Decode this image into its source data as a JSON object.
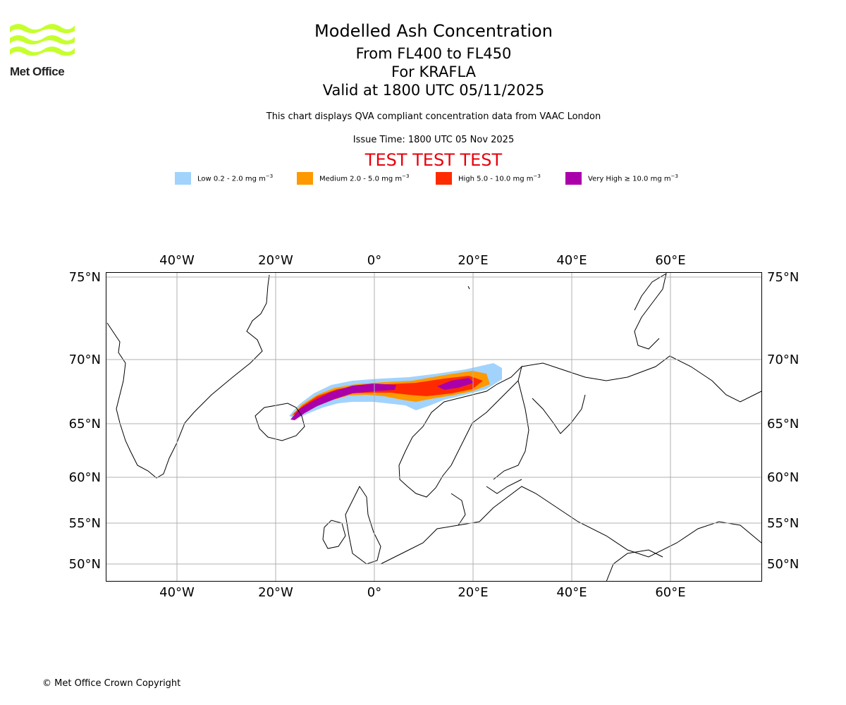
{
  "header": {
    "title": "Modelled Ash Concentration",
    "level_range": "From FL400 to FL450",
    "volcano": "For KRAFLA",
    "valid_time": "Valid at 1800 UTC 05/11/2025",
    "description": "This chart displays QVA compliant concentration data from VAAC London",
    "issue_time": "Issue Time: 1800 UTC 05 Nov 2025",
    "test_banner": "TEST TEST TEST"
  },
  "logo": {
    "text": "Met Office"
  },
  "legend": [
    {
      "label": "Low 0.2 - 2.0 mg m",
      "unit_exp": "−3",
      "color": "#a1d3fd"
    },
    {
      "label": "Medium 2.0 - 5.0 mg m",
      "unit_exp": "−3",
      "color": "#ff9900"
    },
    {
      "label": "High 5.0 - 10.0 mg m",
      "unit_exp": "−3",
      "color": "#ff2a00"
    },
    {
      "label": "Very High  ≥  10.0 mg m",
      "unit_exp": "−3",
      "color": "#aa00aa"
    }
  ],
  "map": {
    "lon_labels": [
      "40°W",
      "20°W",
      "0°",
      "20°E",
      "40°E",
      "60°E"
    ],
    "lat_labels": [
      "75°N",
      "70°N",
      "65°N",
      "60°N",
      "55°N",
      "50°N"
    ]
  },
  "footer": {
    "copyright": "© Met Office Crown Copyright"
  }
}
